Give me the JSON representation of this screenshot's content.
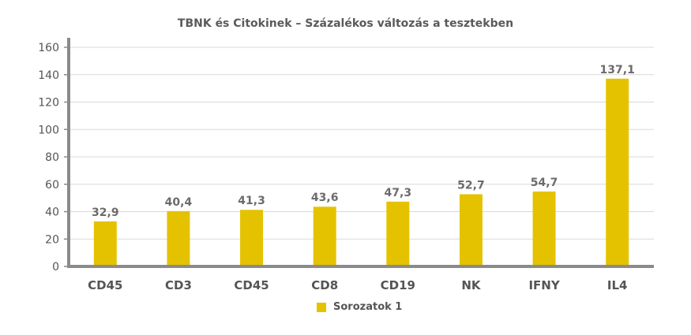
{
  "chart_data": {
    "type": "bar",
    "title": "TBNK és Citokinek – Százalékos változás a tesztekben",
    "categories": [
      "CD45",
      "CD3",
      "CD45",
      "CD8",
      "CD19",
      "NK",
      "IFNY",
      "IL4"
    ],
    "series": [
      {
        "name": "Sorozatok 1",
        "values": [
          32.9,
          40.4,
          41.3,
          43.6,
          47.3,
          52.7,
          54.7,
          137.1
        ],
        "data_labels": [
          "32,9",
          "40,4",
          "41,3",
          "43,6",
          "47,3",
          "52,7",
          "54,7",
          "137,1"
        ],
        "color": "#e5c200"
      }
    ],
    "y_ticks": [
      0,
      20,
      40,
      60,
      80,
      100,
      120,
      140,
      160
    ],
    "ylim": [
      0,
      160
    ],
    "grid": true,
    "legend_position": "bottom",
    "colors": {
      "bar": "#e5c200",
      "axis": "#8a8a8a",
      "grid": "#d9d9d9"
    }
  }
}
